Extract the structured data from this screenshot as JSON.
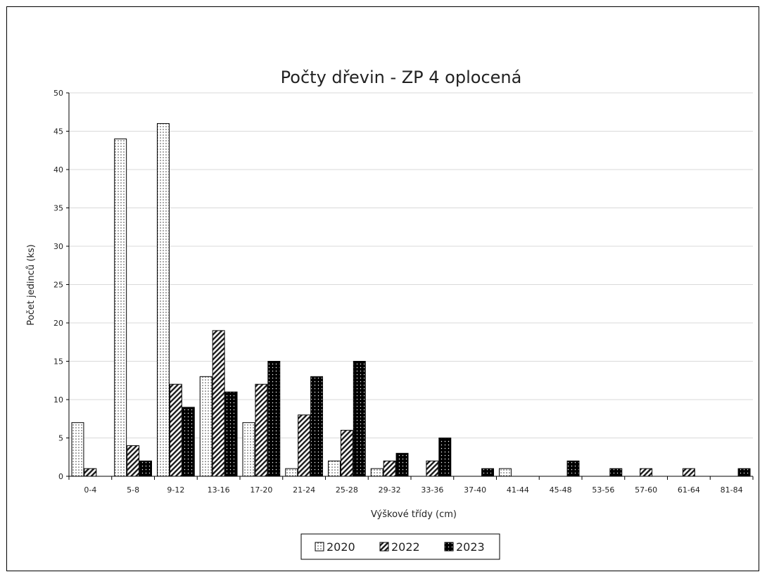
{
  "chart_data": {
    "type": "bar",
    "title": "Počty dřevin - ZP 4 oplocená",
    "xlabel": "Výškové třídy (cm)",
    "ylabel": "Počet jedinců (ks)",
    "ylim": [
      0,
      50
    ],
    "yticks": [
      0,
      5,
      10,
      15,
      20,
      25,
      30,
      35,
      40,
      45,
      50
    ],
    "grid": "horizontal",
    "legend_position": "bottom",
    "categories": [
      "0-4",
      "5-8",
      "9-12",
      "13-16",
      "17-20",
      "21-24",
      "25-28",
      "29-32",
      "33-36",
      "37-40",
      "41-44",
      "45-48",
      "53-56",
      "57-60",
      "61-64",
      "81-84"
    ],
    "series": [
      {
        "name": "2020",
        "pattern": "dots",
        "values": [
          7,
          44,
          46,
          13,
          7,
          1,
          2,
          1,
          0,
          0,
          1,
          0,
          0,
          0,
          0,
          0
        ]
      },
      {
        "name": "2022",
        "pattern": "diagonal-hatch",
        "values": [
          1,
          4,
          12,
          19,
          12,
          8,
          6,
          2,
          2,
          0,
          0,
          0,
          0,
          1,
          1,
          0
        ]
      },
      {
        "name": "2023",
        "pattern": "dark-dots",
        "values": [
          0,
          2,
          9,
          11,
          15,
          13,
          15,
          3,
          5,
          1,
          0,
          2,
          1,
          0,
          0,
          1
        ]
      }
    ]
  }
}
